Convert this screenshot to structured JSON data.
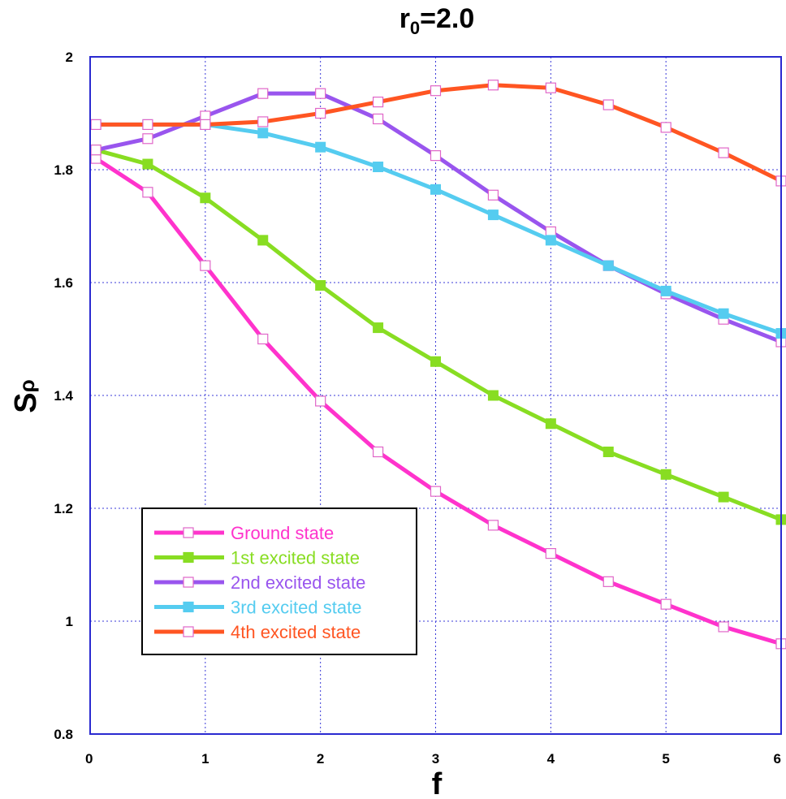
{
  "chart_data": {
    "type": "line",
    "title_main": "r",
    "title_sub": "0",
    "title_rest": "=2.0",
    "xlabel": "f",
    "ylabel_main": "S",
    "ylabel_sub": "ρ",
    "xlim": [
      0,
      6
    ],
    "ylim": [
      0.8,
      2.0
    ],
    "xticks": [
      0,
      1,
      2,
      3,
      4,
      5,
      6
    ],
    "yticks": [
      0.8,
      1,
      1.2,
      1.4,
      1.6,
      1.8,
      2
    ],
    "xtick_labels": [
      "0",
      "1",
      "2",
      "3",
      "4",
      "5",
      "6"
    ],
    "ytick_labels": [
      "0.8",
      "1",
      "1.2",
      "1.4",
      "1.6",
      "1.8",
      "2"
    ],
    "grid": true,
    "legend_position": "lower-left",
    "x": [
      0.05,
      0.5,
      1.0,
      1.5,
      2.0,
      2.5,
      3.0,
      3.5,
      4.0,
      4.5,
      5.0,
      5.5,
      6.0
    ],
    "series": [
      {
        "name": "Ground state",
        "color": "#ff33cc",
        "marker": "open-square",
        "values": [
          1.82,
          1.76,
          1.63,
          1.5,
          1.39,
          1.3,
          1.23,
          1.17,
          1.12,
          1.07,
          1.03,
          0.99,
          0.96
        ]
      },
      {
        "name": "1st excited state",
        "color": "#88dd22",
        "marker": "filled-square",
        "values": [
          1.835,
          1.81,
          1.75,
          1.675,
          1.595,
          1.52,
          1.46,
          1.4,
          1.35,
          1.3,
          1.26,
          1.22,
          1.18
        ]
      },
      {
        "name": "2nd excited state",
        "color": "#9955ee",
        "marker": "open-square",
        "values": [
          1.835,
          1.855,
          1.895,
          1.935,
          1.935,
          1.89,
          1.825,
          1.755,
          1.69,
          1.63,
          1.58,
          1.535,
          1.495
        ]
      },
      {
        "name": "3rd excited state",
        "color": "#55ccf0",
        "marker": "filled-square",
        "values": [
          1.88,
          1.88,
          1.88,
          1.865,
          1.84,
          1.805,
          1.765,
          1.72,
          1.675,
          1.63,
          1.585,
          1.545,
          1.51
        ]
      },
      {
        "name": "4th excited state",
        "color": "#ff5522",
        "marker": "open-square",
        "values": [
          1.88,
          1.88,
          1.88,
          1.885,
          1.9,
          1.92,
          1.94,
          1.95,
          1.945,
          1.915,
          1.875,
          1.83,
          1.78
        ]
      }
    ]
  }
}
